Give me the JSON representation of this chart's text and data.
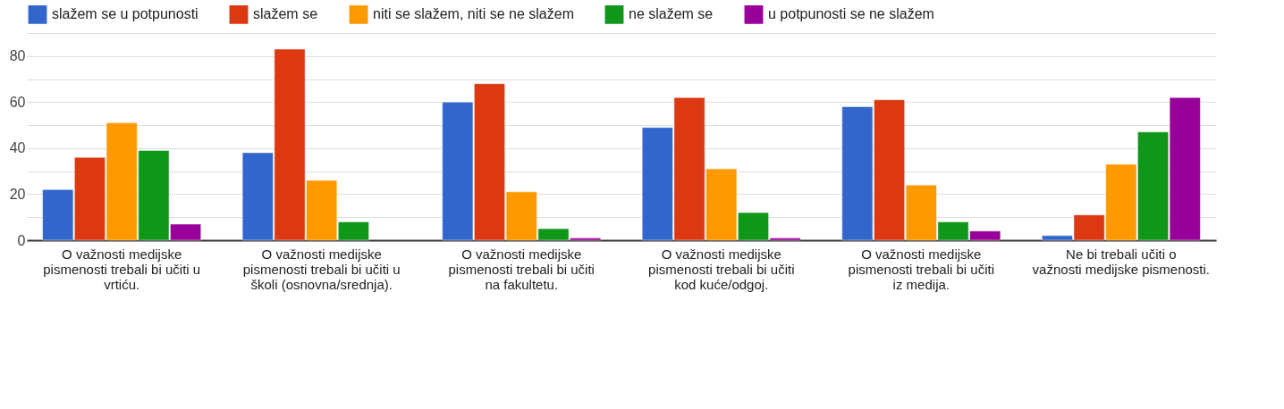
{
  "chart_data": {
    "type": "bar",
    "categories": [
      "O važnosti medijske pismenosti trebali bi učiti u vrtiću.",
      "O važnosti medijske pismenosti trebali bi učiti u školi (osnovna/srednja).",
      "O važnosti medijske pismenosti trebali bi učiti na fakultetu.",
      "O važnosti medijske pismenosti trebali bi učiti kod kuće/odgoj.",
      "O važnosti medijske pismenosti trebali bi učiti iz medija.",
      "Ne bi trebali učiti o važnosti medijske pismenosti."
    ],
    "series": [
      {
        "name": "slažem se u potpunosti",
        "color": "#3366cc",
        "values": [
          22,
          38,
          60,
          49,
          58,
          2
        ]
      },
      {
        "name": "slažem se",
        "color": "#dc3912",
        "values": [
          36,
          83,
          68,
          62,
          61,
          11
        ]
      },
      {
        "name": "niti se slažem, niti se ne slažem",
        "color": "#ff9900",
        "values": [
          51,
          26,
          21,
          31,
          24,
          33
        ]
      },
      {
        "name": "ne slažem se",
        "color": "#109618",
        "values": [
          39,
          8,
          5,
          12,
          8,
          47
        ]
      },
      {
        "name": "u potpunosti se ne slažem",
        "color": "#990099",
        "values": [
          7,
          null,
          1,
          1,
          4,
          62
        ]
      }
    ],
    "ylim": [
      0,
      90
    ],
    "yticks": [
      0,
      {
        "value": 10,
        "label": null
      },
      20,
      {
        "value": 30,
        "label": null
      },
      40,
      {
        "value": 50,
        "label": null
      },
      60,
      {
        "value": 70,
        "label": null
      },
      80,
      {
        "value": 90,
        "label": null
      }
    ],
    "grid": "y",
    "legend": "top"
  }
}
